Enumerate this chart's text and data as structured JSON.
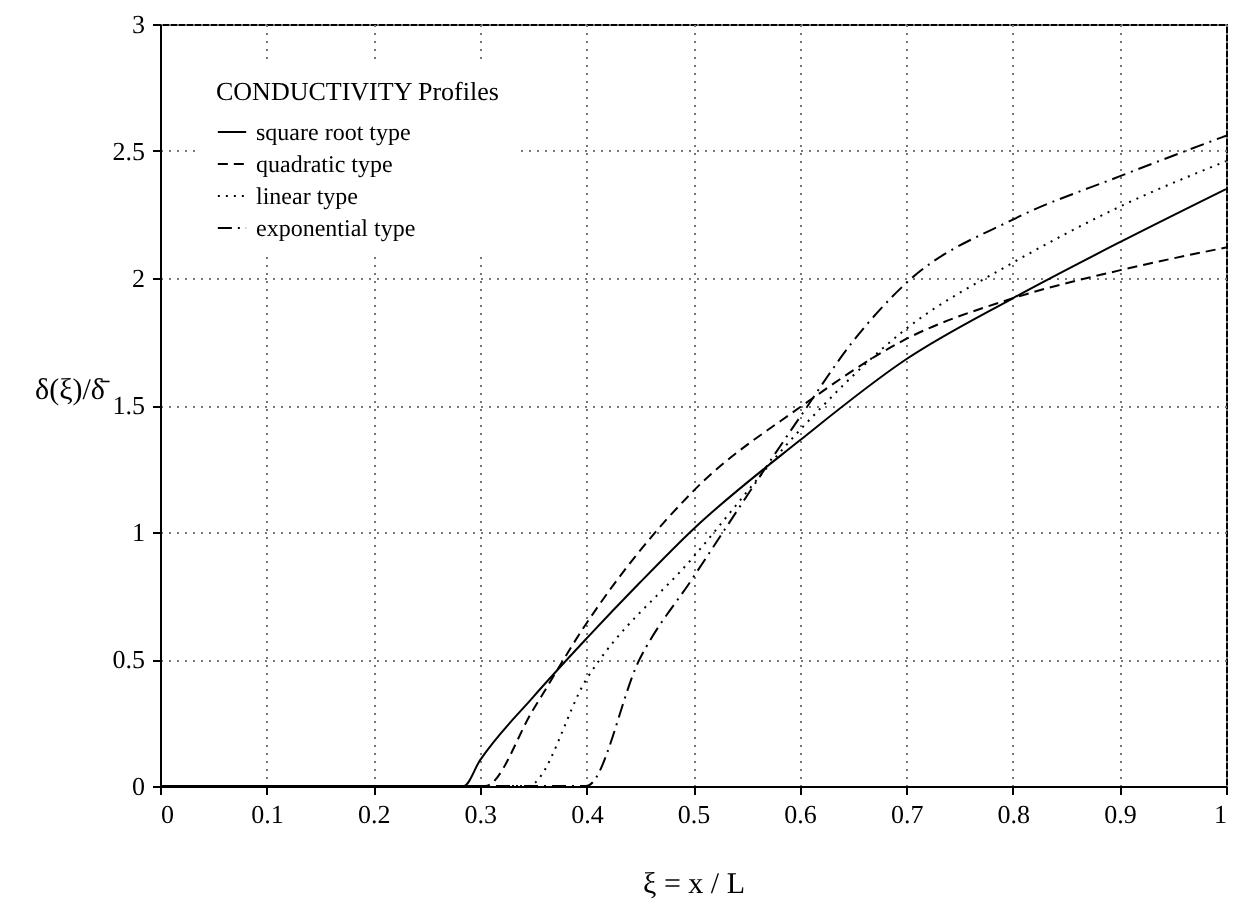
{
  "chart_data": {
    "type": "line",
    "xlabel": "ξ = x / L",
    "ylabel": "δ(ξ)/δ̄",
    "legend_title": "CONDUCTIVITY Profiles",
    "xlim": [
      0,
      1
    ],
    "ylim": [
      0,
      3
    ],
    "xticks": [
      0,
      0.1,
      0.2,
      0.3,
      0.4,
      0.5,
      0.6,
      0.7,
      0.8,
      0.9,
      1
    ],
    "yticks": [
      0,
      0.5,
      1,
      1.5,
      2,
      2.5,
      3
    ],
    "grid": true,
    "legend": "top left",
    "marker": "none",
    "series": [
      {
        "name": "square root type",
        "color": "#000000",
        "line_style": "solid",
        "x": [
          0,
          0.285,
          0.3,
          0.35,
          0.4,
          0.45,
          0.5,
          0.6,
          0.7,
          0.8,
          0.9,
          1
        ],
        "values": [
          0,
          0,
          0.1,
          0.35,
          0.58,
          0.8,
          1.01,
          1.36,
          1.68,
          1.92,
          2.14,
          2.35
        ]
      },
      {
        "name": "quadratic type",
        "color": "#000000",
        "line_style": "dashed",
        "x": [
          0,
          0.305,
          0.35,
          0.4,
          0.5,
          0.6,
          0.7,
          0.8,
          0.9,
          1
        ],
        "values": [
          0,
          0,
          0.3,
          0.64,
          1.16,
          1.49,
          1.76,
          1.92,
          2.03,
          2.12
        ]
      },
      {
        "name": "linear type",
        "color": "#000000",
        "line_style": "dotted",
        "x": [
          0,
          0.345,
          0.4,
          0.5,
          0.6,
          0.7,
          0.8,
          0.9,
          1
        ],
        "values": [
          0,
          0,
          0.42,
          0.9,
          1.4,
          1.8,
          2.06,
          2.28,
          2.46
        ]
      },
      {
        "name": "exponential type",
        "color": "#000000",
        "line_style": "dashdot",
        "x": [
          0,
          0.4,
          0.45,
          0.5,
          0.6,
          0.65,
          0.7,
          0.8,
          0.9,
          1
        ],
        "values": [
          0,
          0,
          0.5,
          0.82,
          1.45,
          1.75,
          1.98,
          2.23,
          2.4,
          2.56
        ]
      }
    ]
  }
}
